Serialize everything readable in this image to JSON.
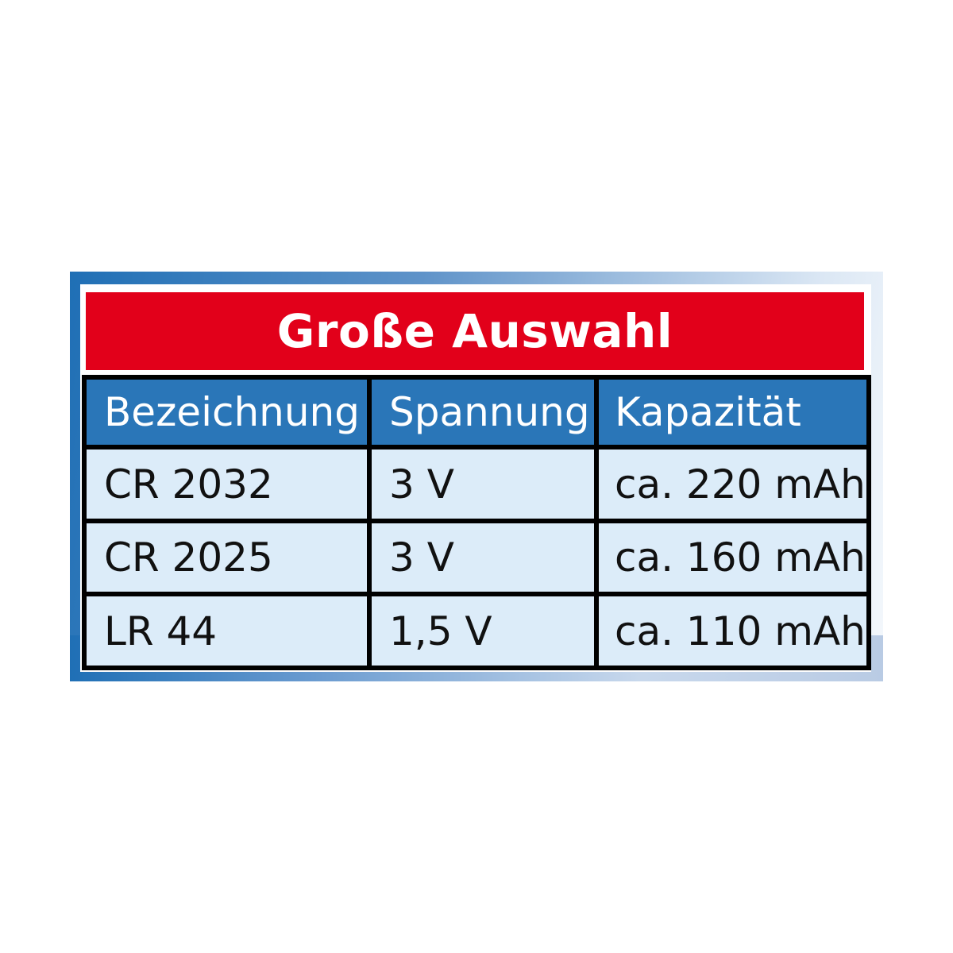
{
  "title": "Große Auswahl",
  "colors": {
    "banner": "#e2001a",
    "header": "#2a76b8",
    "cell": "#dcecf9",
    "frame": "#1f6fb5"
  },
  "table": {
    "headers": [
      "Bezeichnung",
      "Spannung",
      "Kapazität"
    ],
    "rows": [
      [
        "CR 2032",
        "3 V",
        "ca. 220 mAh"
      ],
      [
        "CR 2025",
        "3 V",
        "ca. 160 mAh"
      ],
      [
        "LR 44",
        "1,5 V",
        "ca. 110 mAh"
      ]
    ]
  }
}
